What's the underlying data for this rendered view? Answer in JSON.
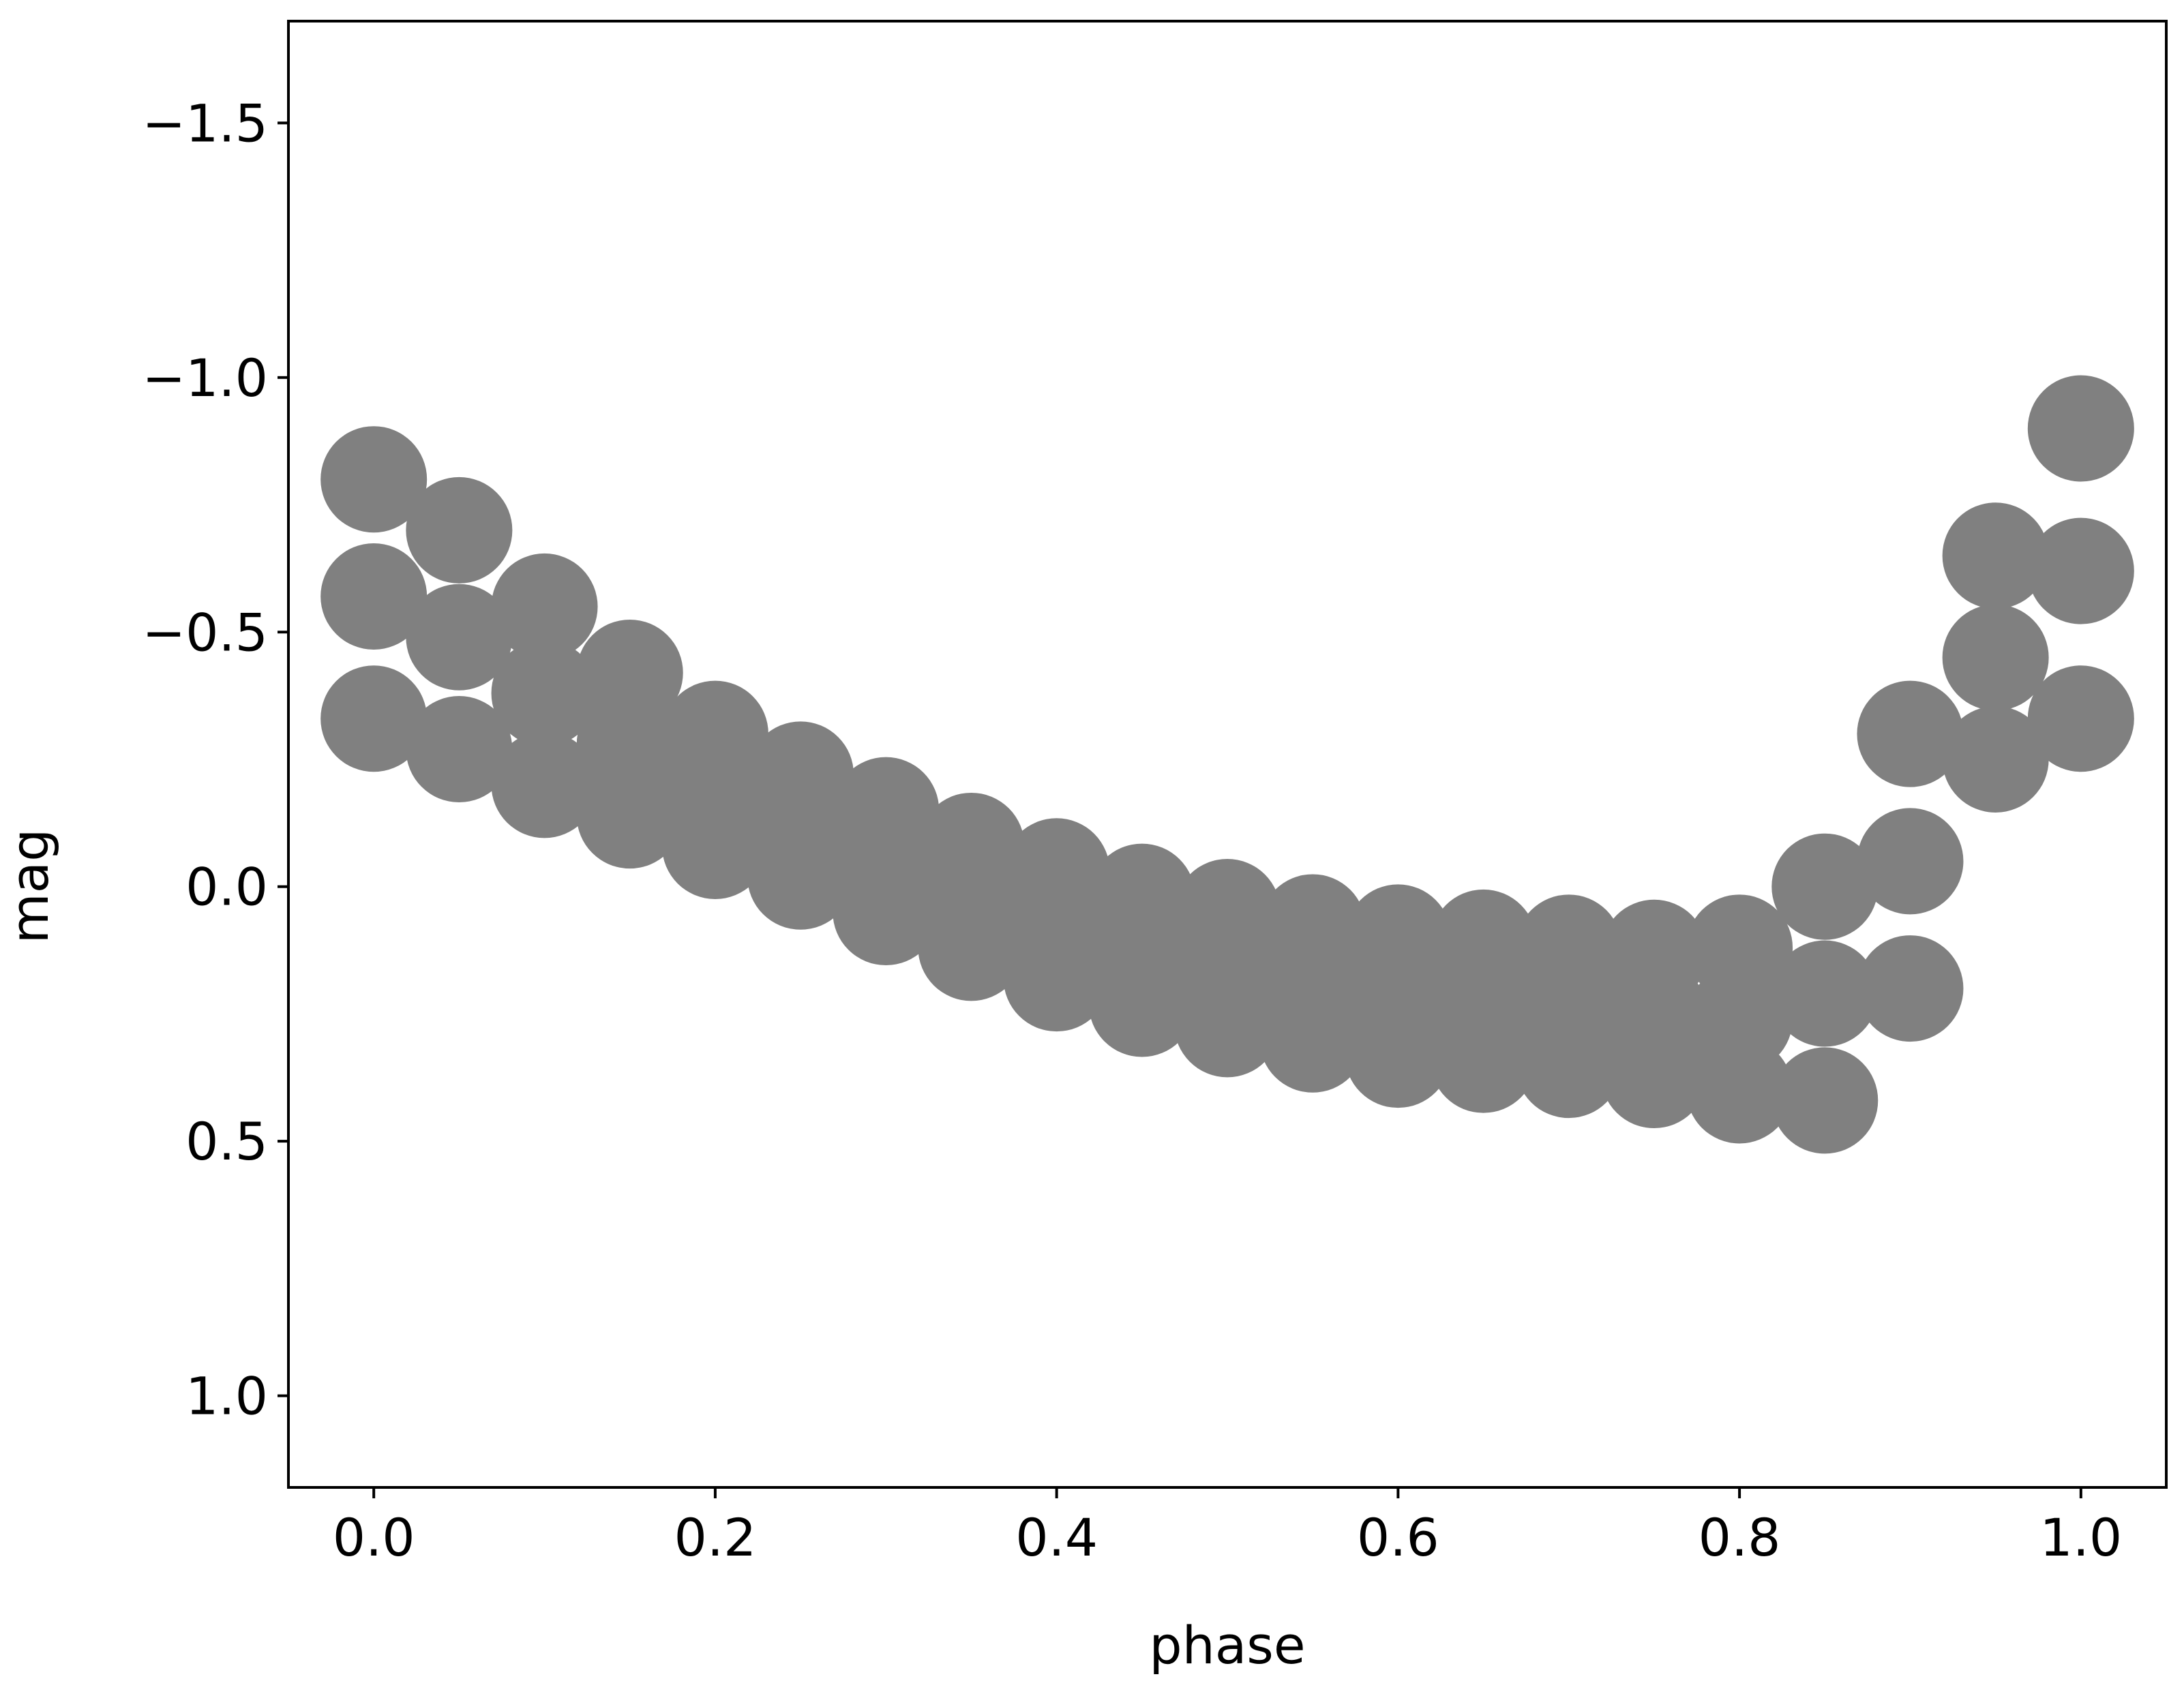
{
  "chart_data": {
    "type": "scatter",
    "xlabel": "phase",
    "ylabel": "mag",
    "color": "#808080",
    "y_inverted": true,
    "xlim": [
      -0.05,
      1.05
    ],
    "ylim": [
      -1.7,
      1.18
    ],
    "xticks": [
      {
        "value": 0,
        "label": "0.0"
      },
      {
        "value": 0.2,
        "label": "0.2"
      },
      {
        "value": 0.4,
        "label": "0.4"
      },
      {
        "value": 0.6,
        "label": "0.6"
      },
      {
        "value": 0.8,
        "label": "0.8"
      },
      {
        "value": 1,
        "label": "1.0"
      }
    ],
    "yticks": [
      {
        "value": -1.5,
        "label": "−1.5"
      },
      {
        "value": -1,
        "label": "−1.0"
      },
      {
        "value": -0.5,
        "label": "−0.5"
      },
      {
        "value": 0,
        "label": "0.0"
      },
      {
        "value": 0.5,
        "label": "0.5"
      },
      {
        "value": 1,
        "label": "1.0"
      }
    ],
    "x": [
      0,
      0,
      0,
      0.05,
      0.05,
      0.05,
      0.1,
      0.1,
      0.1,
      0.15,
      0.15,
      0.15,
      0.2,
      0.2,
      0.2,
      0.25,
      0.25,
      0.25,
      0.3,
      0.3,
      0.3,
      0.35,
      0.35,
      0.35,
      0.4,
      0.4,
      0.4,
      0.45,
      0.45,
      0.45,
      0.5,
      0.5,
      0.5,
      0.55,
      0.55,
      0.55,
      0.6,
      0.6,
      0.6,
      0.65,
      0.65,
      0.65,
      0.7,
      0.7,
      0.7,
      0.75,
      0.75,
      0.75,
      0.8,
      0.8,
      0.8,
      0.85,
      0.85,
      0.85,
      0.9,
      0.9,
      0.9,
      0.95,
      0.95,
      0.95,
      1,
      1,
      1
    ],
    "y": [
      -0.8,
      -0.57,
      -0.33,
      -0.7,
      -0.49,
      -0.27,
      -0.55,
      -0.38,
      -0.2,
      -0.42,
      -0.28,
      -0.14,
      -0.3,
      -0.19,
      -0.08,
      -0.22,
      -0.12,
      -0.02,
      -0.15,
      -0.05,
      0.05,
      -0.08,
      0.02,
      0.12,
      -0.03,
      0.08,
      0.18,
      0.02,
      0.13,
      0.23,
      0.05,
      0.16,
      0.27,
      0.08,
      0.19,
      0.3,
      0.1,
      0.22,
      0.33,
      0.11,
      0.23,
      0.34,
      0.12,
      0.24,
      0.35,
      0.13,
      0.25,
      0.37,
      0.12,
      0.26,
      0.4,
      0,
      0.21,
      0.42,
      -0.3,
      -0.05,
      0.2,
      -0.65,
      -0.45,
      -0.25,
      -0.9,
      -0.62,
      -0.33
    ]
  }
}
